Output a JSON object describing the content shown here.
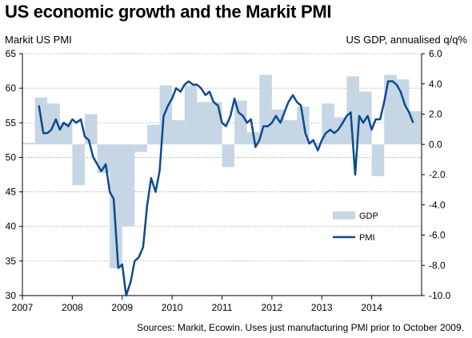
{
  "chart_data": {
    "type": "bar+line",
    "title": "US economic growth and the Markit PMI",
    "left_axis_label": "Markit US PMI",
    "right_axis_label": "US GDP, annualised q/q%",
    "source": "Sources: Markit, Ecowin. Uses just manufacturing PMI prior to October 2009.",
    "x_tick_labels": [
      "2007",
      "2008",
      "2009",
      "2010",
      "2011",
      "2012",
      "2013",
      "2014"
    ],
    "left_ylim": [
      30,
      65
    ],
    "left_yticks": [
      "65",
      "60",
      "55",
      "50",
      "45",
      "40",
      "35",
      "30"
    ],
    "right_ylim": [
      -10,
      6
    ],
    "right_yticks": [
      "6.0",
      "4.0",
      "2.0",
      "0.0",
      "-2.0",
      "-4.0",
      "-6.0",
      "-8.0",
      "-10.0"
    ],
    "grid": true,
    "legend_position": "bottom-right",
    "series": [
      {
        "name": "GDP",
        "type": "bar",
        "axis": "right",
        "color": "#c6d6e4",
        "x": [
          2007.0,
          2007.25,
          2007.5,
          2007.75,
          2008.0,
          2008.25,
          2008.5,
          2008.75,
          2009.0,
          2009.25,
          2009.5,
          2009.75,
          2010.0,
          2010.25,
          2010.5,
          2010.75,
          2011.0,
          2011.25,
          2011.5,
          2011.75,
          2012.0,
          2012.25,
          2012.5,
          2012.75,
          2013.0,
          2013.25,
          2013.5,
          2013.75,
          2014.0,
          2014.25,
          2014.5,
          2014.75
        ],
        "values": [
          0.1,
          3.1,
          2.7,
          1.4,
          -2.7,
          2.0,
          -1.9,
          -8.2,
          -5.4,
          -0.5,
          1.3,
          3.9,
          1.6,
          3.9,
          2.8,
          2.8,
          -1.5,
          2.9,
          0.8,
          4.6,
          2.3,
          1.6,
          2.5,
          0.1,
          2.7,
          1.8,
          4.5,
          3.5,
          -2.1,
          4.6,
          4.3,
          2.2
        ]
      },
      {
        "name": "PMI",
        "type": "line",
        "axis": "left",
        "color": "#0d4a8f",
        "x": [
          2007.33,
          2007.42,
          2007.5,
          2007.58,
          2007.67,
          2007.75,
          2007.83,
          2007.92,
          2008.0,
          2008.08,
          2008.17,
          2008.25,
          2008.33,
          2008.42,
          2008.5,
          2008.58,
          2008.67,
          2008.75,
          2008.83,
          2008.92,
          2009.0,
          2009.08,
          2009.17,
          2009.25,
          2009.33,
          2009.42,
          2009.5,
          2009.58,
          2009.67,
          2009.75,
          2009.83,
          2009.92,
          2010.0,
          2010.08,
          2010.17,
          2010.25,
          2010.33,
          2010.42,
          2010.5,
          2010.58,
          2010.67,
          2010.75,
          2010.83,
          2010.92,
          2011.0,
          2011.08,
          2011.17,
          2011.25,
          2011.33,
          2011.42,
          2011.5,
          2011.58,
          2011.67,
          2011.75,
          2011.83,
          2011.92,
          2012.0,
          2012.08,
          2012.17,
          2012.25,
          2012.33,
          2012.42,
          2012.5,
          2012.58,
          2012.67,
          2012.75,
          2012.83,
          2012.92,
          2013.0,
          2013.08,
          2013.17,
          2013.25,
          2013.33,
          2013.42,
          2013.5,
          2013.58,
          2013.67,
          2013.75,
          2013.83,
          2013.92,
          2014.0,
          2014.08,
          2014.17,
          2014.25,
          2014.33,
          2014.42,
          2014.5,
          2014.58,
          2014.67,
          2014.75,
          2014.83
        ],
        "values": [
          57.5,
          53.5,
          53.5,
          54.0,
          55.5,
          54.0,
          55.0,
          54.5,
          55.5,
          55.0,
          55.5,
          53.0,
          52.5,
          50.0,
          49.0,
          48.0,
          49.0,
          45.0,
          44.0,
          34.0,
          34.5,
          30.0,
          32.0,
          35.0,
          35.5,
          37.0,
          43.0,
          47.0,
          45.0,
          48.0,
          56.0,
          57.5,
          58.5,
          60.0,
          59.5,
          60.5,
          61.0,
          60.5,
          60.5,
          60.0,
          59.0,
          59.5,
          58.0,
          57.5,
          55.0,
          54.5,
          56.0,
          58.5,
          56.5,
          56.0,
          55.0,
          55.5,
          51.5,
          52.5,
          54.5,
          54.5,
          55.0,
          56.0,
          55.0,
          56.5,
          58.0,
          59.0,
          58.0,
          57.5,
          53.5,
          52.0,
          52.5,
          51.0,
          52.5,
          53.5,
          54.0,
          53.5,
          54.0,
          55.0,
          56.0,
          56.5,
          47.5,
          56.0,
          55.0,
          56.0,
          54.0,
          55.5,
          55.5,
          58.0,
          61.0,
          61.0,
          60.5,
          59.5,
          57.5,
          56.5,
          55.0
        ]
      }
    ]
  }
}
